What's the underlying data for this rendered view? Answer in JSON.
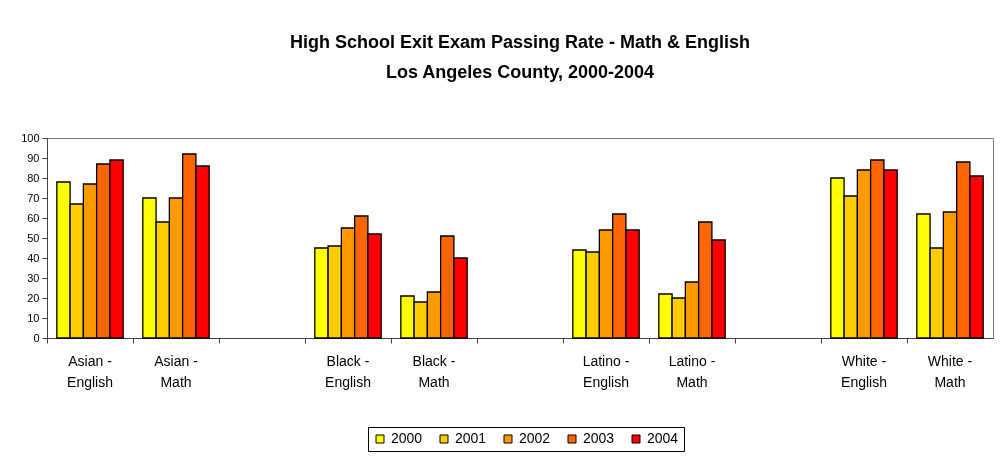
{
  "chart_data": {
    "type": "bar",
    "title": "High School Exit Exam Passing Rate - Math & English",
    "subtitle": "Los Angeles County, 2000-2004",
    "categories": [
      "Asian - English",
      "Asian - Math",
      null,
      "Black - English",
      "Black - Math",
      null,
      "Latino - English",
      "Latino - Math",
      null,
      "White - English",
      "White - Math"
    ],
    "series": [
      {
        "name": "2000",
        "color": "#ffff00",
        "values": [
          78,
          70,
          null,
          45,
          21,
          null,
          44,
          22,
          null,
          80,
          62
        ]
      },
      {
        "name": "2001",
        "color": "#ffcc00",
        "values": [
          67,
          58,
          null,
          46,
          18,
          null,
          43,
          20,
          null,
          71,
          45
        ]
      },
      {
        "name": "2002",
        "color": "#ff9900",
        "values": [
          77,
          70,
          null,
          55,
          23,
          null,
          54,
          28,
          null,
          84,
          63
        ]
      },
      {
        "name": "2003",
        "color": "#ff6600",
        "values": [
          87,
          92,
          null,
          61,
          51,
          null,
          62,
          58,
          null,
          89,
          88
        ]
      },
      {
        "name": "2004",
        "color": "#ff0000",
        "values": [
          89,
          86,
          null,
          52,
          40,
          null,
          54,
          49,
          null,
          84,
          81
        ]
      }
    ],
    "ylim": [
      0,
      100
    ],
    "yticks": [
      0,
      10,
      20,
      30,
      40,
      50,
      60,
      70,
      80,
      90,
      100
    ],
    "grid": false,
    "legend": "bottom"
  }
}
